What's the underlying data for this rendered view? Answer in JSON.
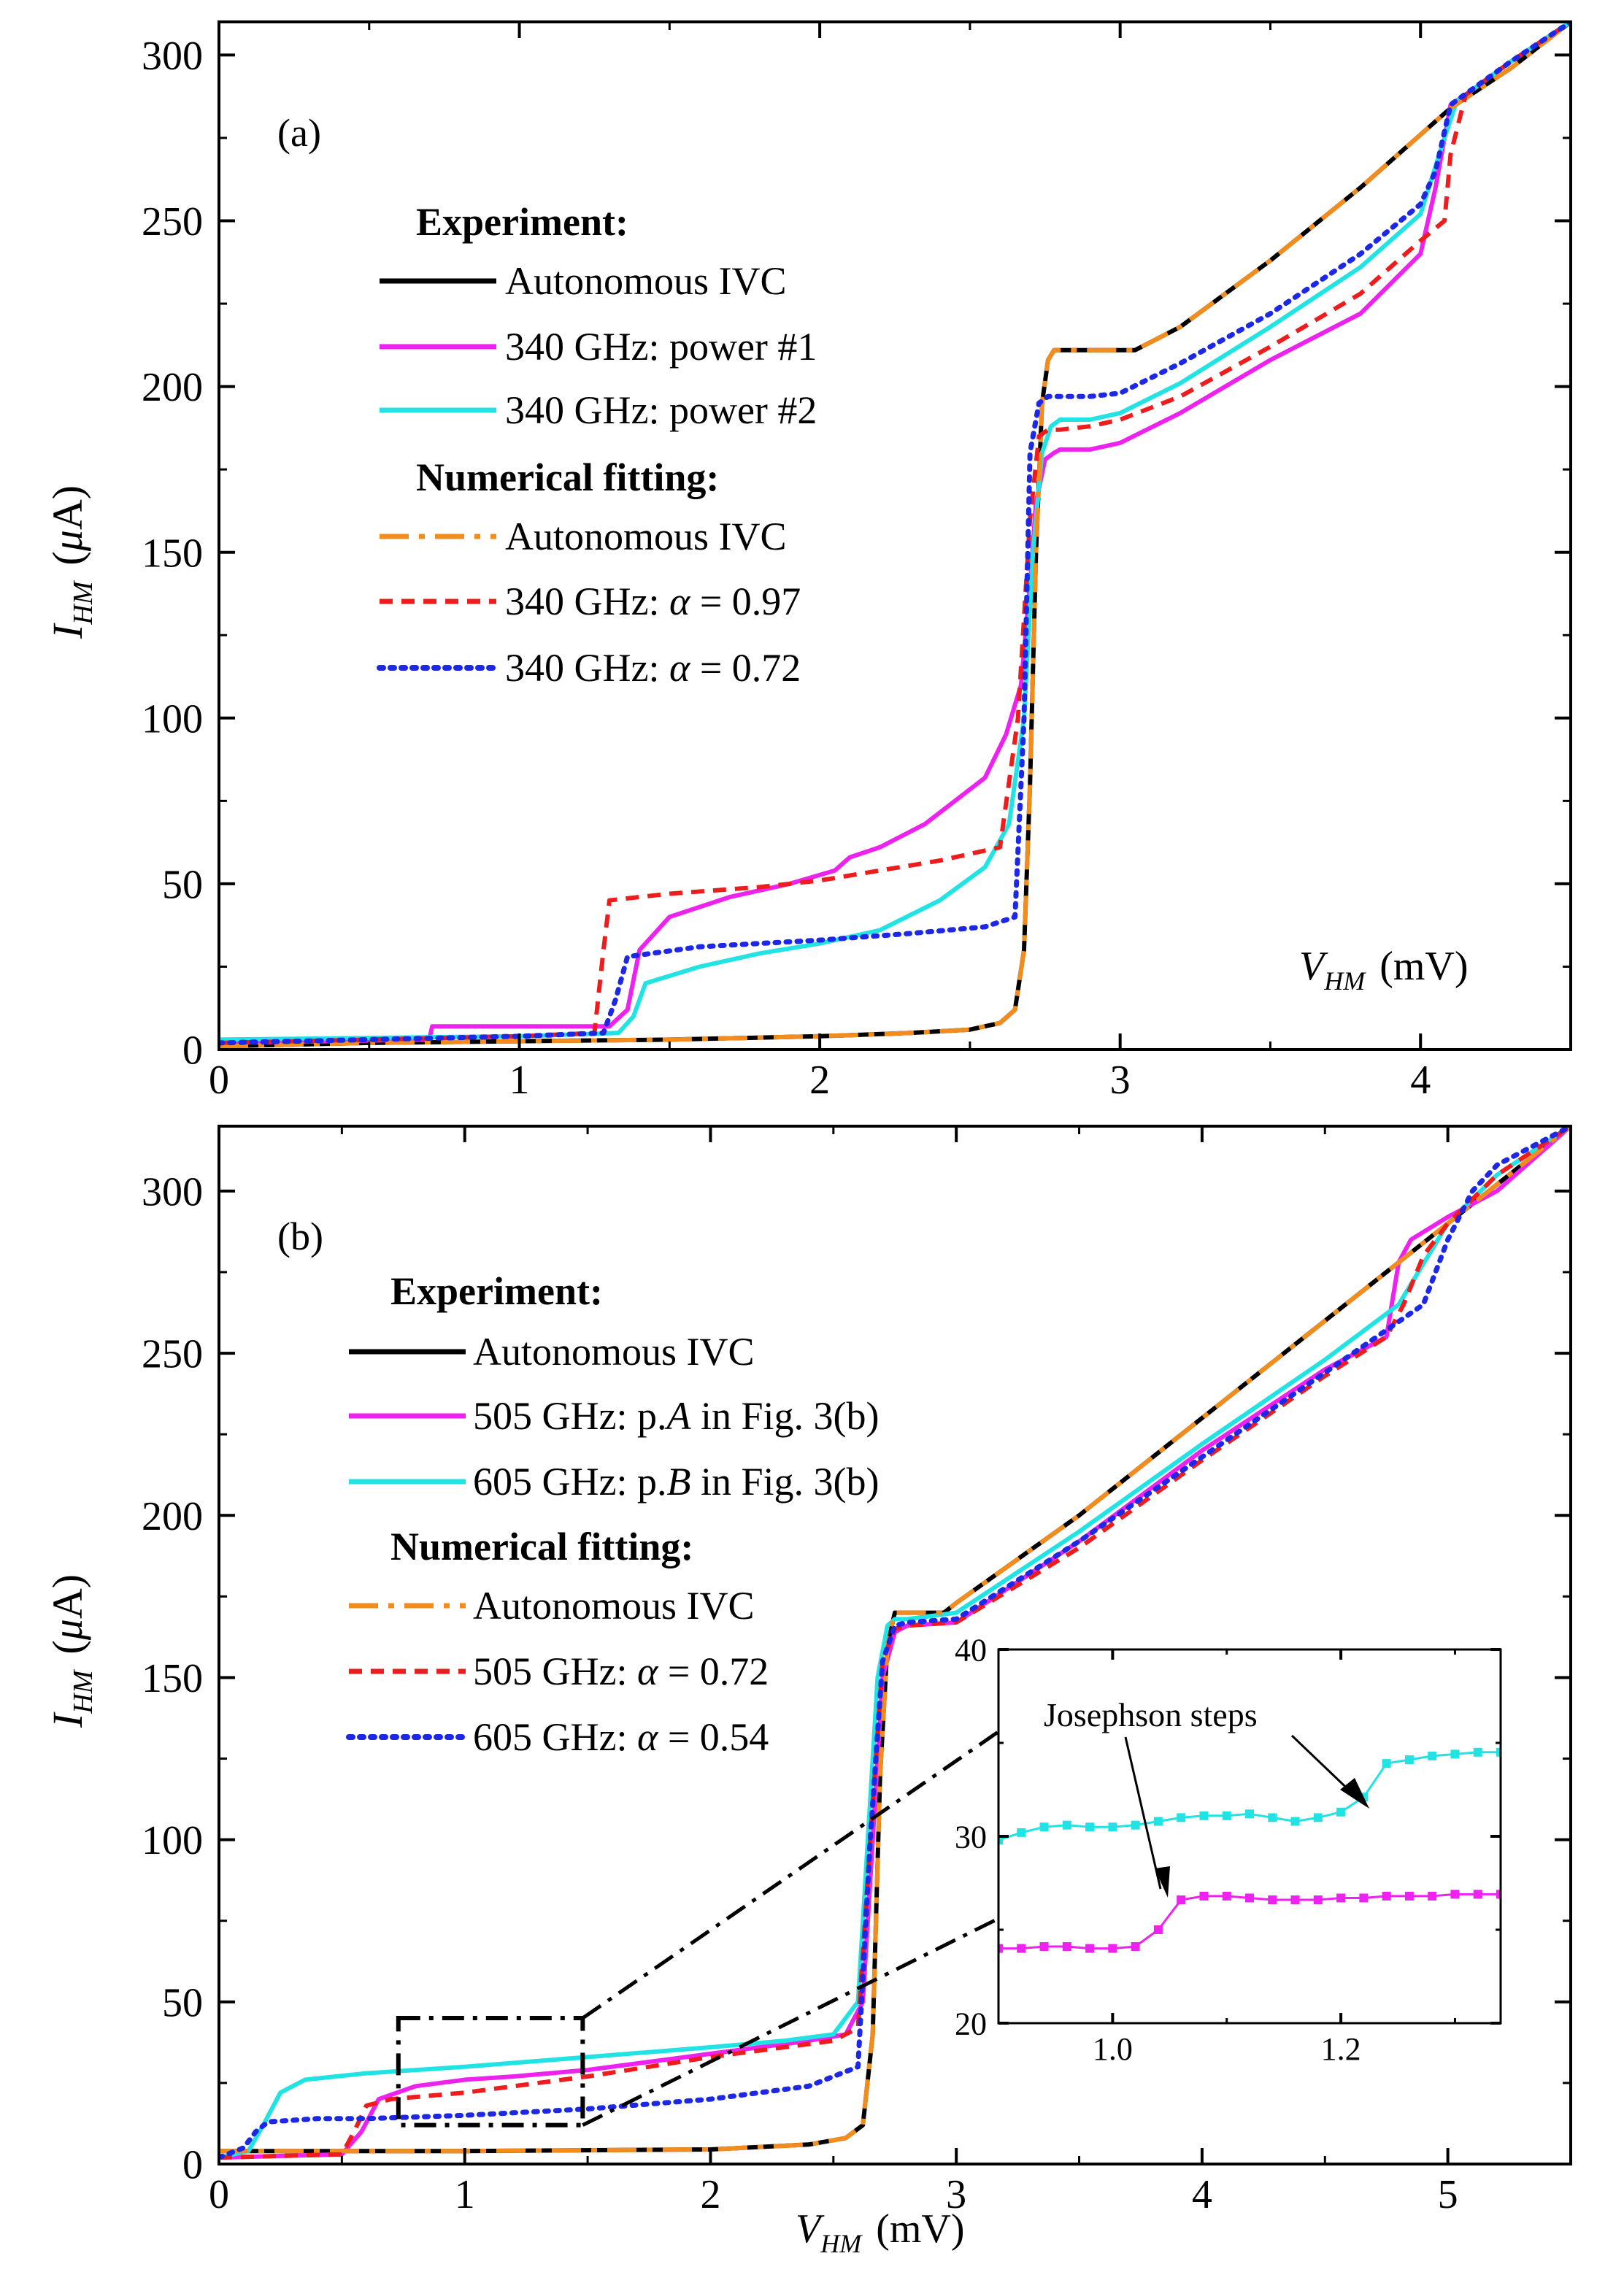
{
  "colors": {
    "black": "#000000",
    "magenta": "#ee22ee",
    "cyan": "#22e3e3",
    "orange": "#f28c1c",
    "red": "#ee1c1c",
    "blue": "#1c28e6"
  },
  "chart_data": [
    {
      "id": "a",
      "type": "line",
      "panel_label": "(a)",
      "xlabel": "V_HM (mV)",
      "ylabel": "I_HM (μA)",
      "xlim": [
        0,
        4.5
      ],
      "ylim": [
        0,
        310
      ],
      "xticks": [
        "0",
        "1",
        "2",
        "3",
        "4"
      ],
      "xtick_values": [
        0,
        1,
        2,
        3,
        4
      ],
      "yticks": [
        "0",
        "50",
        "100",
        "150",
        "200",
        "250",
        "300"
      ],
      "ytick_values": [
        0,
        50,
        100,
        150,
        200,
        250,
        300
      ],
      "legend": {
        "position": "upper-left",
        "experiment_heading": "Experiment:",
        "fitting_heading": "Numerical fitting:",
        "entries": [
          "Autonomous IVC",
          "340 GHz: power #1",
          "340 GHz: power #2",
          "Autonomous IVC",
          "340 GHz: α = 0.97",
          "340 GHz: α = 0.72"
        ]
      },
      "series": [
        {
          "name": "Autonomous IVC",
          "group": "Experiment",
          "color": "black",
          "style": "solid",
          "x": [
            0,
            0.5,
            1.0,
            1.5,
            2.0,
            2.3,
            2.5,
            2.6,
            2.65,
            2.68,
            2.7,
            2.72,
            2.74,
            2.76,
            2.78,
            2.85,
            2.95,
            3.05,
            3.2,
            3.5,
            3.8,
            4.1,
            4.3,
            4.5
          ],
          "y": [
            1,
            2,
            2.5,
            3,
            4,
            5,
            6,
            8,
            12,
            30,
            80,
            150,
            195,
            208,
            211,
            211,
            211,
            211,
            218,
            238,
            260,
            284,
            296,
            310
          ]
        },
        {
          "name": "340 GHz: power #1",
          "group": "Experiment",
          "color": "magenta",
          "style": "solid",
          "x": [
            0,
            0.7,
            0.71,
            1.0,
            1.3,
            1.36,
            1.4,
            1.5,
            1.7,
            1.9,
            2.05,
            2.1,
            2.2,
            2.35,
            2.45,
            2.55,
            2.62,
            2.67,
            2.7,
            2.72,
            2.75,
            2.78,
            2.8,
            2.9,
            3.0,
            3.2,
            3.5,
            3.8,
            4.0,
            4.05,
            4.1,
            4.15,
            4.3,
            4.5
          ],
          "y": [
            2,
            3,
            7,
            7,
            7,
            12,
            30,
            40,
            46,
            50,
            54,
            58,
            61,
            68,
            75,
            82,
            95,
            110,
            140,
            165,
            178,
            180,
            181,
            181,
            183,
            192,
            208,
            222,
            240,
            260,
            285,
            288,
            298,
            310
          ]
        },
        {
          "name": "340 GHz: power #2",
          "group": "Experiment",
          "color": "cyan",
          "style": "solid",
          "x": [
            0,
            0.5,
            1.0,
            1.33,
            1.38,
            1.42,
            1.6,
            1.8,
            2.0,
            2.2,
            2.4,
            2.55,
            2.63,
            2.68,
            2.71,
            2.74,
            2.77,
            2.8,
            2.9,
            3.0,
            3.2,
            3.5,
            3.8,
            4.0,
            4.08,
            4.12,
            4.3,
            4.5
          ],
          "y": [
            3,
            3.5,
            4,
            5,
            10,
            20,
            25,
            29,
            32,
            36,
            45,
            55,
            68,
            100,
            150,
            180,
            188,
            190,
            190,
            192,
            201,
            218,
            236,
            252,
            275,
            286,
            298,
            310
          ]
        },
        {
          "name": "Autonomous IVC",
          "group": "Numerical fitting",
          "color": "orange",
          "style": "dashdot",
          "x": [
            0,
            0.5,
            1.0,
            1.5,
            2.0,
            2.3,
            2.5,
            2.6,
            2.65,
            2.68,
            2.7,
            2.72,
            2.74,
            2.76,
            2.78,
            2.85,
            2.95,
            3.05,
            3.2,
            3.5,
            3.8,
            4.1,
            4.3,
            4.5
          ],
          "y": [
            1,
            2,
            2.5,
            3,
            4,
            5,
            6,
            8,
            12,
            30,
            80,
            150,
            195,
            208,
            211,
            211,
            211,
            211,
            218,
            238,
            260,
            284,
            296,
            310
          ]
        },
        {
          "name": "340 GHz: α = 0.97",
          "group": "Numerical fitting",
          "color": "red",
          "style": "dashed",
          "x": [
            0,
            0.5,
            1.0,
            1.25,
            1.28,
            1.3,
            1.5,
            1.8,
            2.0,
            2.2,
            2.4,
            2.6,
            2.66,
            2.7,
            2.73,
            2.76,
            2.8,
            2.9,
            3.0,
            3.2,
            3.5,
            3.8,
            4.0,
            4.08,
            4.1,
            4.15,
            4.3,
            4.5
          ],
          "y": [
            2,
            3,
            4,
            5,
            30,
            45,
            47,
            49,
            51,
            54,
            57,
            61,
            100,
            160,
            185,
            187,
            187,
            188,
            190,
            197,
            212,
            228,
            244,
            250,
            270,
            288,
            298,
            310
          ]
        },
        {
          "name": "340 GHz: α = 0.72",
          "group": "Numerical fitting",
          "color": "blue",
          "style": "dotted",
          "x": [
            0,
            0.5,
            1.0,
            1.28,
            1.32,
            1.36,
            1.6,
            2.0,
            2.3,
            2.55,
            2.65,
            2.68,
            2.7,
            2.73,
            2.76,
            2.8,
            2.9,
            3.0,
            3.2,
            3.5,
            3.8,
            4.0,
            4.05,
            4.1,
            4.3,
            4.5
          ],
          "y": [
            2,
            3,
            4,
            5,
            15,
            28,
            31,
            33,
            35,
            37,
            40,
            100,
            180,
            195,
            197,
            197,
            197,
            198,
            207,
            222,
            240,
            255,
            265,
            285,
            298,
            310
          ]
        }
      ]
    },
    {
      "id": "b",
      "type": "line",
      "panel_label": "(b)",
      "xlabel": "V_HM (mV)",
      "ylabel": "I_HM (μA)",
      "xlim": [
        0,
        5.5
      ],
      "ylim": [
        0,
        320
      ],
      "xticks": [
        "0",
        "1",
        "2",
        "3",
        "4",
        "5"
      ],
      "xtick_values": [
        0,
        1,
        2,
        3,
        4,
        5
      ],
      "yticks": [
        "0",
        "50",
        "100",
        "150",
        "200",
        "250",
        "300"
      ],
      "ytick_values": [
        0,
        50,
        100,
        150,
        200,
        250,
        300
      ],
      "legend": {
        "position": "upper-left",
        "experiment_heading": "Experiment:",
        "fitting_heading": "Numerical fitting:",
        "entries": [
          "Autonomous IVC",
          "505 GHz: p.A in Fig. 3(b)",
          "605 GHz: p.B in Fig. 3(b)",
          "Autonomous IVC",
          "505 GHz: α = 0.72",
          "605 GHz: α = 0.54"
        ]
      },
      "zoom_box": {
        "x": [
          0.73,
          1.48
        ],
        "y": [
          12,
          45
        ]
      },
      "series": [
        {
          "name": "Autonomous IVC",
          "group": "Experiment",
          "color": "black",
          "style": "solid",
          "x": [
            0,
            1.0,
            2.0,
            2.4,
            2.55,
            2.62,
            2.66,
            2.69,
            2.72,
            2.75,
            2.8,
            2.95,
            3.0,
            3.5,
            4.0,
            4.5,
            5.0,
            5.5
          ],
          "y": [
            4,
            4,
            4.5,
            6,
            8,
            12,
            40,
            120,
            160,
            170,
            170,
            170,
            173,
            200,
            230,
            260,
            290,
            320
          ]
        },
        {
          "name": "505 GHz: p.A in Fig. 3(b)",
          "group": "Experiment",
          "color": "magenta",
          "style": "solid",
          "x": [
            0,
            0.5,
            0.58,
            0.65,
            0.8,
            1.0,
            1.2,
            1.5,
            1.8,
            2.0,
            2.2,
            2.4,
            2.55,
            2.62,
            2.66,
            2.7,
            2.75,
            2.8,
            3.0,
            3.5,
            4.0,
            4.5,
            4.75,
            4.8,
            4.85,
            5.0,
            5.2,
            5.5
          ],
          "y": [
            2,
            3,
            10,
            20,
            24,
            26,
            27,
            29,
            32,
            34,
            36,
            38,
            40,
            50,
            100,
            150,
            164,
            166,
            167,
            192,
            220,
            245,
            255,
            278,
            285,
            292,
            300,
            320
          ]
        },
        {
          "name": "605 GHz: p.B in Fig. 3(b)",
          "group": "Experiment",
          "color": "cyan",
          "style": "solid",
          "x": [
            0,
            0.12,
            0.18,
            0.25,
            0.35,
            0.6,
            1.0,
            1.5,
            2.0,
            2.3,
            2.5,
            2.6,
            2.64,
            2.68,
            2.72,
            2.75,
            2.8,
            3.0,
            3.5,
            4.0,
            4.5,
            4.8,
            5.0,
            5.2,
            5.5
          ],
          "y": [
            2,
            4,
            12,
            22,
            26,
            28,
            30,
            33,
            36,
            38,
            40,
            50,
            100,
            150,
            166,
            168,
            168,
            170,
            195,
            222,
            248,
            265,
            290,
            305,
            320
          ]
        },
        {
          "name": "Autonomous IVC",
          "group": "Numerical fitting",
          "color": "orange",
          "style": "dashdot",
          "x": [
            0,
            1.0,
            2.0,
            2.4,
            2.55,
            2.62,
            2.66,
            2.69,
            2.72,
            2.75,
            2.8,
            2.95,
            3.0,
            3.5,
            4.0,
            4.5,
            5.0,
            5.5
          ],
          "y": [
            4,
            4,
            4.5,
            6,
            8,
            12,
            40,
            120,
            160,
            170,
            170,
            170,
            173,
            200,
            230,
            260,
            290,
            320
          ]
        },
        {
          "name": "505 GHz: α = 0.72",
          "group": "Numerical fitting",
          "color": "red",
          "style": "dashed",
          "x": [
            0,
            0.5,
            0.55,
            0.6,
            0.7,
            1.0,
            1.5,
            2.0,
            2.3,
            2.5,
            2.6,
            2.65,
            2.7,
            2.75,
            2.8,
            3.0,
            3.5,
            4.0,
            4.5,
            4.75,
            4.82,
            4.9,
            5.0,
            5.2,
            5.5
          ],
          "y": [
            2,
            3,
            10,
            18,
            20,
            22,
            27,
            33,
            36,
            38,
            42,
            100,
            155,
            165,
            166,
            167,
            190,
            217,
            243,
            255,
            265,
            280,
            290,
            305,
            320
          ]
        },
        {
          "name": "605 GHz: α = 0.54",
          "group": "Numerical fitting",
          "color": "blue",
          "style": "dotted",
          "x": [
            0,
            0.1,
            0.15,
            0.2,
            0.4,
            0.6,
            1.0,
            1.5,
            2.0,
            2.4,
            2.6,
            2.65,
            2.7,
            2.75,
            2.8,
            3.0,
            3.5,
            4.0,
            4.5,
            4.9,
            5.0,
            5.1,
            5.2,
            5.5
          ],
          "y": [
            2,
            5,
            10,
            13,
            14,
            14,
            15,
            17,
            20,
            24,
            30,
            100,
            155,
            166,
            167,
            168,
            192,
            218,
            244,
            265,
            285,
            300,
            308,
            320
          ]
        }
      ]
    },
    {
      "id": "inset",
      "type": "line",
      "xlim": [
        0.9,
        1.34
      ],
      "ylim": [
        20,
        40
      ],
      "xticks": [
        "1.0",
        "1.2"
      ],
      "xtick_values": [
        1.0,
        1.2
      ],
      "yticks": [
        "20",
        "30",
        "40"
      ],
      "ytick_values": [
        20,
        30,
        40
      ],
      "annotation": "Josephson steps",
      "series": [
        {
          "name": "605 GHz: p.B in Fig. 3(b)",
          "color": "cyan",
          "style": "line-square-markers",
          "x": [
            0.9,
            0.92,
            0.94,
            0.96,
            0.98,
            1.0,
            1.02,
            1.04,
            1.06,
            1.08,
            1.1,
            1.12,
            1.14,
            1.16,
            1.18,
            1.2,
            1.22,
            1.24,
            1.26,
            1.28,
            1.3,
            1.32,
            1.34
          ],
          "y": [
            29.8,
            30.2,
            30.5,
            30.6,
            30.5,
            30.5,
            30.6,
            30.8,
            31.0,
            31.1,
            31.1,
            31.2,
            31.0,
            30.8,
            31.0,
            31.3,
            32.1,
            33.9,
            34.1,
            34.3,
            34.4,
            34.5,
            34.5
          ]
        },
        {
          "name": "505 GHz: p.A in Fig. 3(b)",
          "color": "magenta",
          "style": "line-square-markers",
          "x": [
            0.9,
            0.92,
            0.94,
            0.96,
            0.98,
            1.0,
            1.02,
            1.04,
            1.06,
            1.08,
            1.1,
            1.12,
            1.14,
            1.16,
            1.18,
            1.2,
            1.22,
            1.24,
            1.26,
            1.28,
            1.3,
            1.32,
            1.34
          ],
          "y": [
            24.0,
            24.0,
            24.1,
            24.1,
            24.0,
            24.0,
            24.1,
            25.0,
            26.6,
            26.8,
            26.8,
            26.7,
            26.6,
            26.6,
            26.6,
            26.7,
            26.7,
            26.8,
            26.8,
            26.8,
            26.9,
            26.9,
            26.9
          ]
        }
      ]
    }
  ],
  "texts": {
    "a": {
      "panel": "(a)",
      "xlabel_sym": "V",
      "xlabel_sub": "HM",
      "xlabel_unit": "(mV)",
      "ylabel_sym": "I",
      "ylabel_sub": "HM",
      "ylabel_open": "(",
      "ylabel_mu": "μ",
      "ylabel_close": "A)",
      "exp_heading": "Experiment:",
      "fit_heading": "Numerical fitting:",
      "l1": "Autonomous IVC",
      "l2": "340 GHz: power #1",
      "l3": "340 GHz: power #2",
      "l4": "Autonomous IVC",
      "l5_pre": "340 GHz: ",
      "l5_alpha": "α",
      "l5_post": " = 0.97",
      "l6_pre": "340 GHz: ",
      "l6_alpha": "α",
      "l6_post": " = 0.72"
    },
    "b": {
      "panel": "(b)",
      "xlabel_sym": "V",
      "xlabel_sub": "HM",
      "xlabel_unit": "(mV)",
      "ylabel_sym": "I",
      "ylabel_sub": "HM",
      "ylabel_open": "(",
      "ylabel_mu": "μ",
      "ylabel_close": "A)",
      "exp_heading": "Experiment:",
      "fit_heading": "Numerical fitting:",
      "l1": "Autonomous IVC",
      "l2_pre": "505 GHz: p.",
      "l2_it": "A",
      "l2_post": " in Fig. 3(b)",
      "l3_pre": "605 GHz: p.",
      "l3_it": "B",
      "l3_post": " in Fig. 3(b)",
      "l4": "Autonomous IVC",
      "l5_pre": "505 GHz: ",
      "l5_alpha": "α",
      "l5_post": " = 0.72",
      "l6_pre": "605 GHz: ",
      "l6_alpha": "α",
      "l6_post": " = 0.54",
      "inset_annotation": "Josephson steps"
    }
  }
}
